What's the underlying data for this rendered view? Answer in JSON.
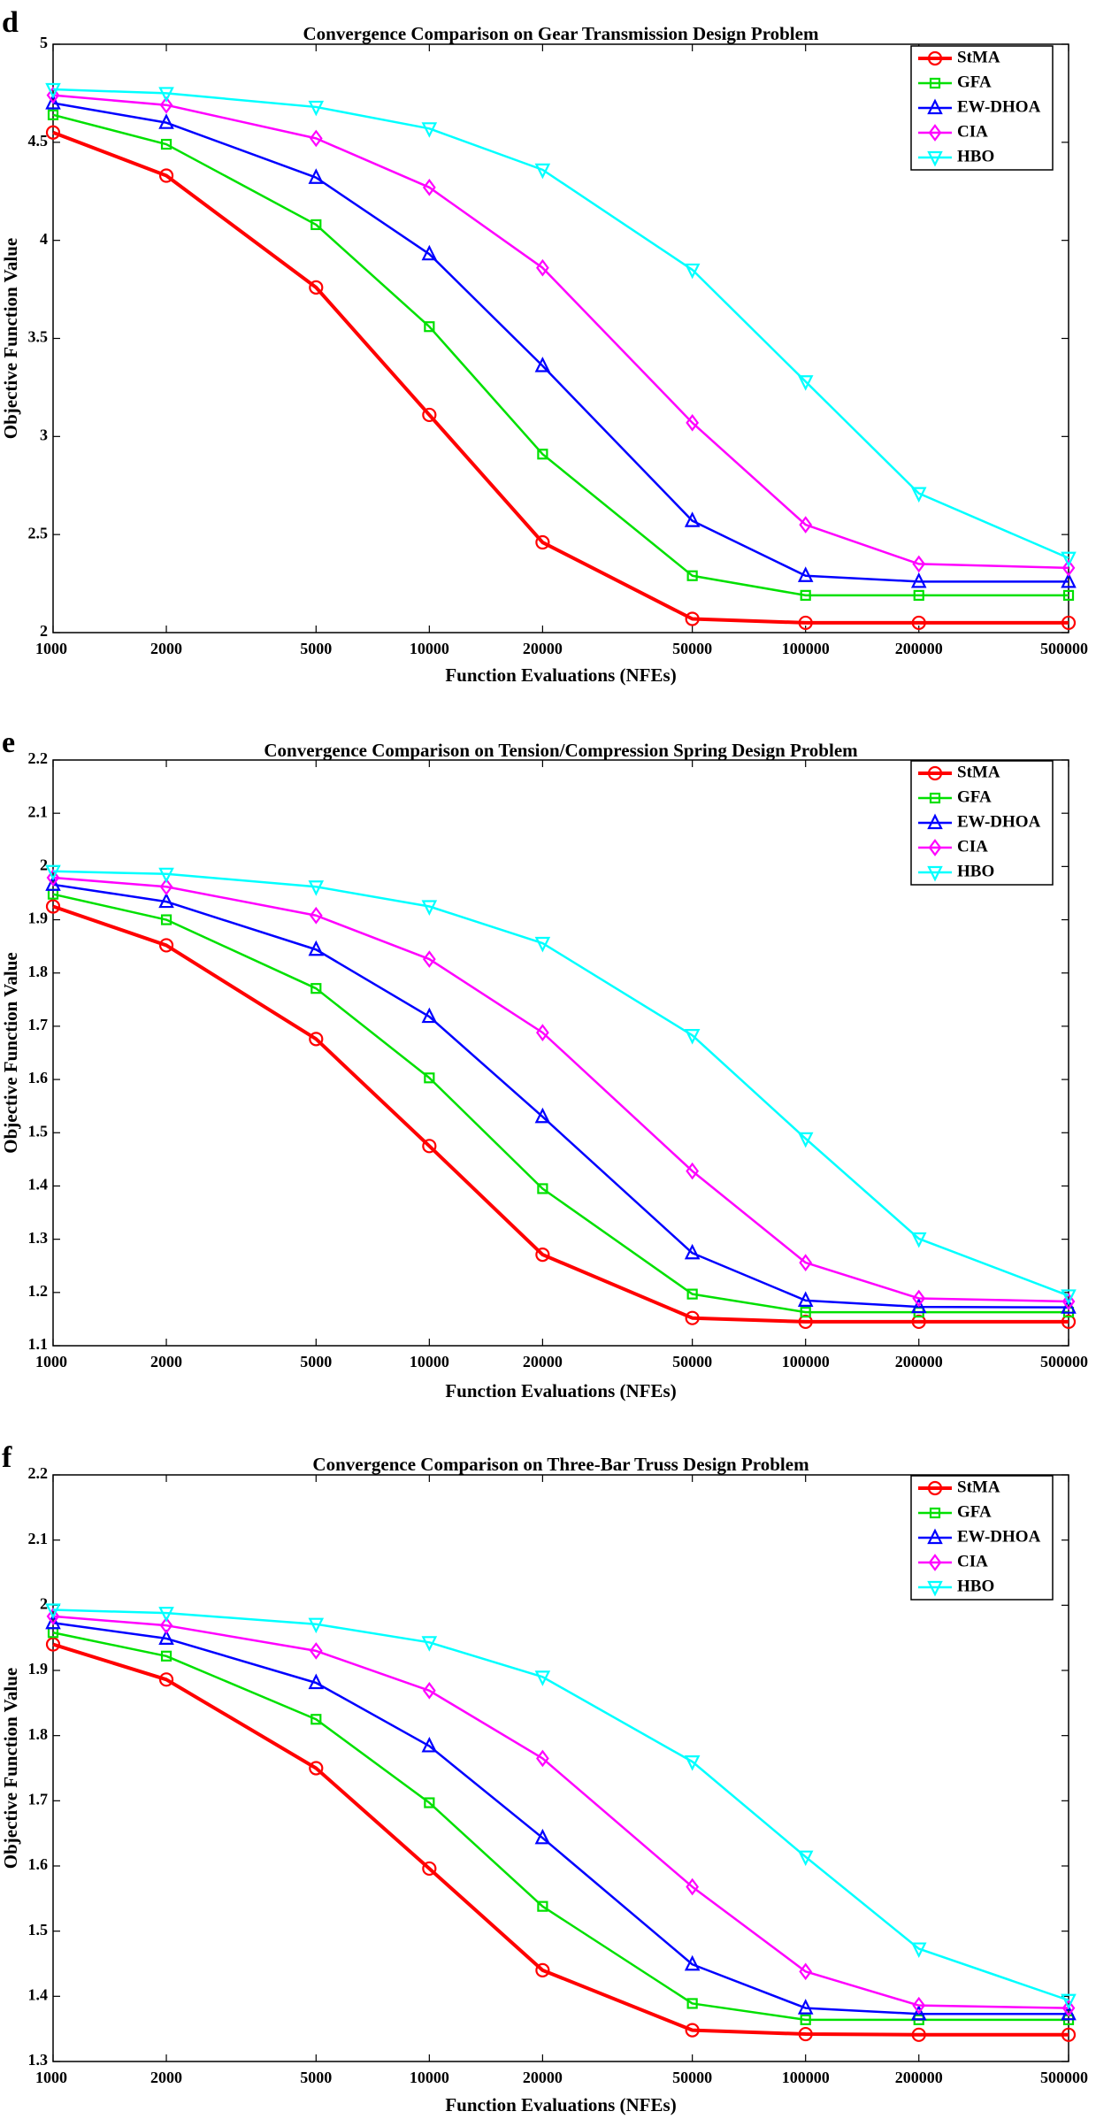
{
  "chart_data": [
    {
      "type": "line",
      "panel_label": "d",
      "title": "Convergence Comparison on Gear Transmission Design Problem",
      "xlabel": "Function Evaluations (NFEs)",
      "ylabel": "Objective Function Value",
      "x": [
        1000,
        2000,
        5000,
        10000,
        20000,
        50000,
        100000,
        200000,
        500000
      ],
      "x_scale": "log",
      "xlim": [
        1000,
        500000
      ],
      "ylim": [
        2,
        5
      ],
      "yticks": [
        2,
        2.5,
        3,
        3.5,
        4,
        4.5,
        5
      ],
      "grid": false,
      "legend": "top-right",
      "series": [
        {
          "name": "StMA",
          "color": "#ff0000",
          "marker": "circle",
          "values": [
            4.55,
            4.33,
            3.76,
            3.11,
            2.46,
            2.07,
            2.05,
            2.05,
            2.05
          ]
        },
        {
          "name": "GFA",
          "color": "#00e000",
          "marker": "square",
          "values": [
            4.64,
            4.49,
            4.08,
            3.56,
            2.91,
            2.29,
            2.19,
            2.19,
            2.19
          ]
        },
        {
          "name": "EW-DHOA",
          "color": "#0000ff",
          "marker": "triangle-up",
          "values": [
            4.7,
            4.6,
            4.32,
            3.93,
            3.36,
            2.57,
            2.29,
            2.26,
            2.26
          ]
        },
        {
          "name": "CIA",
          "color": "#ff00ff",
          "marker": "diamond",
          "values": [
            4.74,
            4.69,
            4.52,
            4.27,
            3.86,
            3.07,
            2.55,
            2.35,
            2.33
          ]
        },
        {
          "name": "HBO",
          "color": "#00ffff",
          "marker": "triangle-down",
          "values": [
            4.77,
            4.75,
            4.68,
            4.57,
            4.36,
            3.85,
            3.28,
            2.71,
            2.38
          ]
        }
      ]
    },
    {
      "type": "line",
      "panel_label": "e",
      "title": "Convergence Comparison on Tension/Compression Spring Design Problem",
      "xlabel": "Function Evaluations (NFEs)",
      "ylabel": "Objective Function Value",
      "x": [
        1000,
        2000,
        5000,
        10000,
        20000,
        50000,
        100000,
        200000,
        500000
      ],
      "x_scale": "log",
      "xlim": [
        1000,
        500000
      ],
      "ylim": [
        1.1,
        2.2
      ],
      "yticks": [
        1.1,
        1.2,
        1.3,
        1.4,
        1.5,
        1.6,
        1.7,
        1.8,
        1.9,
        2,
        2.1,
        2.2
      ],
      "grid": false,
      "legend": "top-right",
      "series": [
        {
          "name": "StMA",
          "color": "#ff0000",
          "marker": "circle",
          "values": [
            1.925,
            1.852,
            1.676,
            1.475,
            1.271,
            1.152,
            1.145,
            1.145,
            1.145
          ]
        },
        {
          "name": "GFA",
          "color": "#00e000",
          "marker": "square",
          "values": [
            1.948,
            1.9,
            1.771,
            1.603,
            1.395,
            1.197,
            1.163,
            1.163,
            1.163
          ]
        },
        {
          "name": "EW-DHOA",
          "color": "#0000ff",
          "marker": "triangle-up",
          "values": [
            1.966,
            1.934,
            1.844,
            1.718,
            1.53,
            1.274,
            1.185,
            1.173,
            1.172
          ]
        },
        {
          "name": "CIA",
          "color": "#ff00ff",
          "marker": "diamond",
          "values": [
            1.979,
            1.962,
            1.908,
            1.826,
            1.688,
            1.428,
            1.256,
            1.189,
            1.183
          ]
        },
        {
          "name": "HBO",
          "color": "#00ffff",
          "marker": "triangle-down",
          "values": [
            1.991,
            1.986,
            1.962,
            1.925,
            1.856,
            1.683,
            1.489,
            1.301,
            1.194
          ]
        }
      ]
    },
    {
      "type": "line",
      "panel_label": "f",
      "title": "Convergence Comparison on Three-Bar Truss Design Problem",
      "xlabel": "Function Evaluations (NFEs)",
      "ylabel": "Objective Function Value",
      "x": [
        1000,
        2000,
        5000,
        10000,
        20000,
        50000,
        100000,
        200000,
        500000
      ],
      "x_scale": "log",
      "xlim": [
        1000,
        500000
      ],
      "ylim": [
        1.3,
        2.2
      ],
      "yticks": [
        1.3,
        1.4,
        1.5,
        1.6,
        1.7,
        1.8,
        1.9,
        2,
        2.1,
        2.2
      ],
      "grid": false,
      "legend": "top-right",
      "series": [
        {
          "name": "StMA",
          "color": "#ff0000",
          "marker": "circle",
          "values": [
            1.94,
            1.886,
            1.75,
            1.596,
            1.44,
            1.348,
            1.342,
            1.341,
            1.341
          ]
        },
        {
          "name": "GFA",
          "color": "#00e000",
          "marker": "square",
          "values": [
            1.958,
            1.922,
            1.825,
            1.697,
            1.538,
            1.389,
            1.364,
            1.364,
            1.364
          ]
        },
        {
          "name": "EW-DHOA",
          "color": "#0000ff",
          "marker": "triangle-up",
          "values": [
            1.973,
            1.949,
            1.881,
            1.784,
            1.643,
            1.449,
            1.382,
            1.373,
            1.373
          ]
        },
        {
          "name": "CIA",
          "color": "#ff00ff",
          "marker": "diamond",
          "values": [
            1.983,
            1.969,
            1.93,
            1.869,
            1.765,
            1.568,
            1.438,
            1.386,
            1.382
          ]
        },
        {
          "name": "HBO",
          "color": "#00ffff",
          "marker": "triangle-down",
          "values": [
            1.993,
            1.988,
            1.971,
            1.943,
            1.89,
            1.76,
            1.614,
            1.473,
            1.394
          ]
        }
      ]
    }
  ]
}
